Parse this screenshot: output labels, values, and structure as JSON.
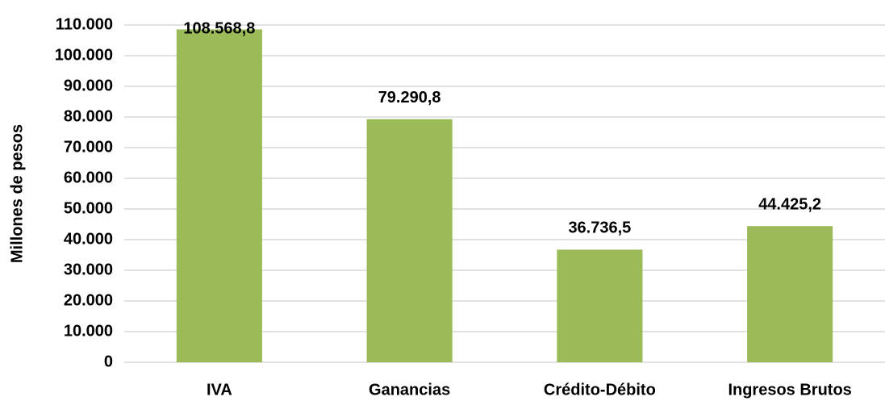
{
  "chart_data": {
    "type": "bar",
    "y_axis_label": "Millones de pesos",
    "categories": [
      "IVA",
      "Ganancias",
      "Crédito-Débito",
      "Ingresos Brutos"
    ],
    "values": [
      108568.8,
      79290.8,
      36736.5,
      44425.2
    ],
    "value_labels": [
      "108.568,8",
      "79.290,8",
      "36.736,5",
      "44.425,2"
    ],
    "color": "#9bbb59",
    "ylim": [
      0,
      110000
    ],
    "yticks": [
      0,
      {
        "value": 10000,
        "label": "10.000"
      },
      {
        "value": 20000,
        "label": "20.000"
      },
      {
        "value": 30000,
        "label": "30.000"
      },
      {
        "value": 40000,
        "label": "40.000"
      },
      {
        "value": 50000,
        "label": "50.000"
      },
      {
        "value": 60000,
        "label": "60.000"
      },
      {
        "value": 70000,
        "label": "70.000"
      },
      {
        "value": 80000,
        "label": "80.000"
      },
      {
        "value": 90000,
        "label": "90.000"
      },
      {
        "value": 100000,
        "label": "100.000"
      },
      {
        "value": 110000,
        "label": "110.000"
      }
    ],
    "grid": true
  }
}
